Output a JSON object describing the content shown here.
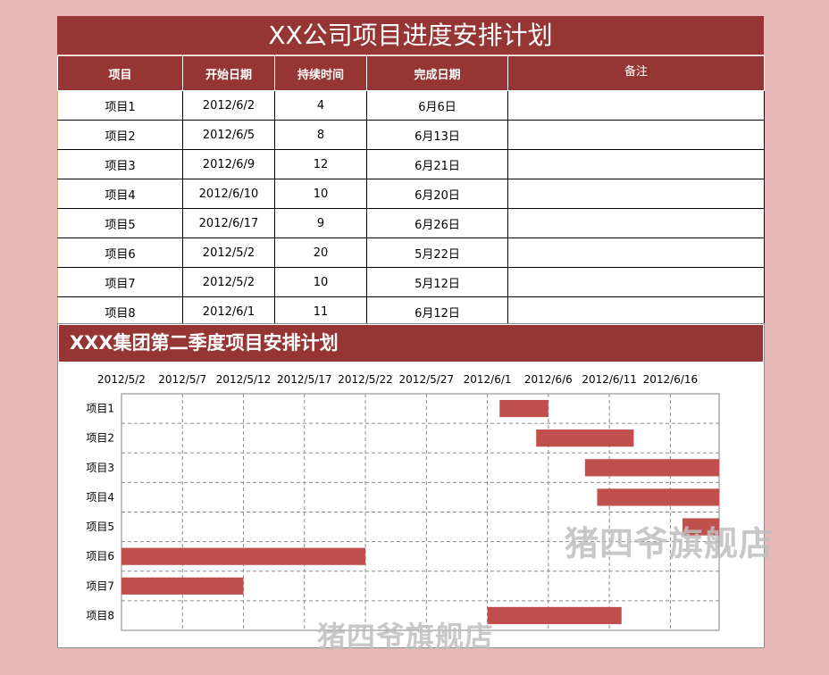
{
  "sheet": {
    "title": "XX公司项目进度安排计划",
    "headers": [
      "项目",
      "开始日期",
      "持续时间",
      "完成日期",
      "备注"
    ],
    "rows": [
      {
        "name": "项目1",
        "start": "2012/6/2",
        "duration": "4",
        "end": "6月6日",
        "note": ""
      },
      {
        "name": "项目2",
        "start": "2012/6/5",
        "duration": "8",
        "end": "6月13日",
        "note": ""
      },
      {
        "name": "项目3",
        "start": "2012/6/9",
        "duration": "12",
        "end": "6月21日",
        "note": ""
      },
      {
        "name": "项目4",
        "start": "2012/6/10",
        "duration": "10",
        "end": "6月20日",
        "note": ""
      },
      {
        "name": "项目5",
        "start": "2012/6/17",
        "duration": "9",
        "end": "6月26日",
        "note": ""
      },
      {
        "name": "项目6",
        "start": "2012/5/2",
        "duration": "20",
        "end": "5月22日",
        "note": ""
      },
      {
        "name": "项目7",
        "start": "2012/5/2",
        "duration": "10",
        "end": "5月12日",
        "note": ""
      },
      {
        "name": "项目8",
        "start": "2012/6/1",
        "duration": "11",
        "end": "6月12日",
        "note": ""
      }
    ]
  },
  "chart_data": {
    "type": "bar",
    "orientation": "horizontal-gantt",
    "title": "XXX集团第二季度项目安排计划",
    "categories": [
      "项目1",
      "项目2",
      "项目3",
      "项目4",
      "项目5",
      "项目6",
      "项目7",
      "项目8"
    ],
    "series": [
      {
        "start": [
          "2012/6/2",
          "2012/6/5",
          "2012/6/9",
          "2012/6/10",
          "2012/6/17",
          "2012/5/2",
          "2012/5/2",
          "2012/6/1"
        ],
        "duration_days": [
          4,
          8,
          12,
          10,
          9,
          20,
          10,
          11
        ]
      }
    ],
    "x_ticks": [
      "2012/5/2",
      "2012/5/7",
      "2012/5/12",
      "2012/5/17",
      "2012/5/22",
      "2012/5/27",
      "2012/6/1",
      "2012/6/6",
      "2012/6/11",
      "2012/6/16"
    ],
    "xlim": [
      "2012/5/2",
      "2012/6/20"
    ],
    "x_axis_position": "top",
    "grid": true,
    "bar_color": "#c0504d"
  },
  "watermark": "猪四爷旗舰店",
  "colors": {
    "header": "#963634",
    "background": "#e6b8b8",
    "bar": "#c0504d"
  }
}
